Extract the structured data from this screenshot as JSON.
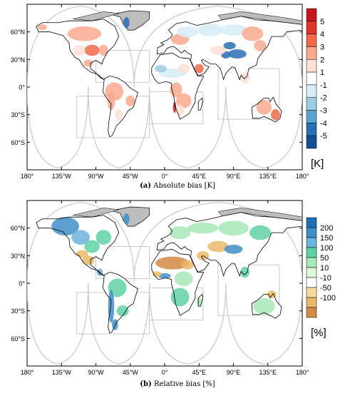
{
  "panels": [
    {
      "id": "a",
      "caption_label": "(a)",
      "caption_text": "Absolute bias [K]",
      "legend_labels": [
        "5",
        "4",
        "3",
        "2",
        "1",
        "-1",
        "-2",
        "-3",
        "-4",
        "-5"
      ],
      "legend_colors": [
        "#c4161c",
        "#e0352b",
        "#f06a4a",
        "#f9a98e",
        "#fde0d6",
        "#ffffff",
        "#d6ecf7",
        "#9ccbe4",
        "#5aa3cf",
        "#2a6fb3",
        "#114f96"
      ],
      "unit": "[K]"
    },
    {
      "id": "b",
      "caption_label": "(b)",
      "caption_text": "Relative bias [%]",
      "legend_labels": [
        "200",
        "150",
        "100",
        "50",
        "10",
        "-10",
        "-50",
        "-100"
      ],
      "legend_colors": [
        "#1f6fb5",
        "#3f8fc7",
        "#6bb3d9",
        "#5fd1a6",
        "#a8e7b8",
        "#dff7dc",
        "#ffffff",
        "#f6dc9a",
        "#eab86a",
        "#d48a45"
      ],
      "unit": "[%]"
    }
  ],
  "y_ticks": [
    "60°N",
    "30°N",
    "0°",
    "30°S",
    "60°S"
  ],
  "x_ticks": [
    "180°",
    "135°W",
    "90°W",
    "45°W",
    "0°",
    "45°E",
    "90°E",
    "135°E",
    "180°"
  ],
  "land_color": "#bdbdbd",
  "outline_color": "#c8c8c8"
}
